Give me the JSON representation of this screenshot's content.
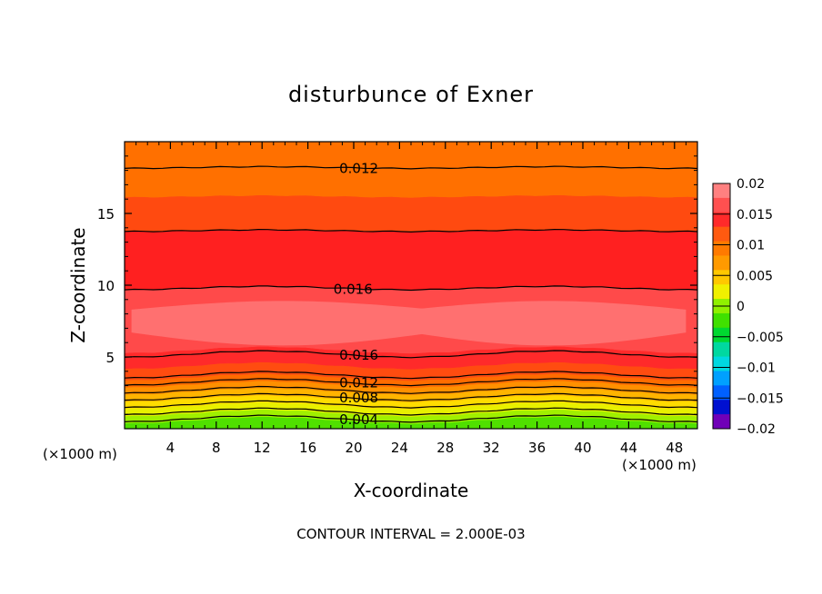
{
  "chart_data": {
    "type": "contour",
    "title": "disturbunce of Exner",
    "xlabel": "X-coordinate",
    "ylabel": "Z-coordinate",
    "x_unit_left": "(×1000 m)",
    "x_unit_right": "(×1000 m)",
    "xlim": [
      0,
      50
    ],
    "ylim": [
      0,
      20
    ],
    "xticks": [
      4,
      8,
      12,
      16,
      20,
      24,
      28,
      32,
      36,
      40,
      44,
      48
    ],
    "yticks": [
      5,
      10,
      15
    ],
    "footer": "CONTOUR INTERVAL = 2.000E-03",
    "contour_interval": 0.002,
    "colorbar": {
      "tick_labels": [
        "0.02",
        "0.015",
        "0.01",
        "0.005",
        "0",
        "−0.005",
        "−0.01",
        "−0.015",
        "−0.02"
      ],
      "levels": [
        0.02,
        0.0175,
        0.015,
        0.0125,
        0.01,
        0.0075,
        0.005,
        0.0025,
        0,
        -0.0025,
        -0.005,
        -0.0075,
        -0.01,
        -0.0125,
        -0.015,
        -0.0175,
        -0.02
      ],
      "colors": [
        "#ff8080",
        "#ff5050",
        "#ff2a2a",
        "#ff5a10",
        "#ff7a00",
        "#ff9a00",
        "#ffc800",
        "#f0f000",
        "#90f000",
        "#40e000",
        "#00d830",
        "#00d8a0",
        "#00d8e0",
        "#00a0ff",
        "#0060ff",
        "#0010d0",
        "#7000b8"
      ]
    },
    "bands": [
      {
        "range": [
          0.0,
          0.6
        ],
        "color": "#50e000"
      },
      {
        "range": [
          0.6,
          1.1
        ],
        "color": "#a0f000"
      },
      {
        "range": [
          1.1,
          1.6
        ],
        "color": "#e8f000"
      },
      {
        "range": [
          1.6,
          2.1
        ],
        "color": "#ffdc00"
      },
      {
        "range": [
          2.1,
          2.6
        ],
        "color": "#ffb400"
      },
      {
        "range": [
          2.6,
          3.1
        ],
        "color": "#ff9000"
      },
      {
        "range": [
          3.1,
          3.6
        ],
        "color": "#ff6c00"
      },
      {
        "range": [
          3.6,
          4.4
        ],
        "color": "#ff4c10"
      },
      {
        "range": [
          4.4,
          5.5
        ],
        "color": "#ff2a2a"
      },
      {
        "range": [
          5.5,
          9.8
        ],
        "color": "#ff4a4a"
      },
      {
        "range": [
          9.8,
          13.8
        ],
        "color": "#ff2020"
      },
      {
        "range": [
          13.8,
          16.2
        ],
        "color": "#ff4a10"
      },
      {
        "range": [
          16.2,
          20.0
        ],
        "color": "#ff7000"
      }
    ],
    "high_core": {
      "color": "#ff7070",
      "y_bottom": 6.3,
      "y_top": 8.5
    },
    "contours": [
      {
        "z": 0.7,
        "label": "0.004",
        "label_x": 18.5
      },
      {
        "z": 1.2,
        "label": "",
        "label_x": null
      },
      {
        "z": 1.7,
        "label": "",
        "label_x": null
      },
      {
        "z": 2.2,
        "label": "0.008",
        "label_x": 18.5
      },
      {
        "z": 2.7,
        "label": "",
        "label_x": null
      },
      {
        "z": 3.25,
        "label": "0.012",
        "label_x": 18.5
      },
      {
        "z": 3.75,
        "label": "",
        "label_x": null
      },
      {
        "z": 5.2,
        "label": "0.016",
        "label_x": 18.5
      },
      {
        "z": 9.8,
        "label": "0.016",
        "label_x": 18.0
      },
      {
        "z": 13.8,
        "label": "",
        "label_x": null
      },
      {
        "z": 18.2,
        "label": "0.012",
        "label_x": 18.5
      }
    ]
  }
}
